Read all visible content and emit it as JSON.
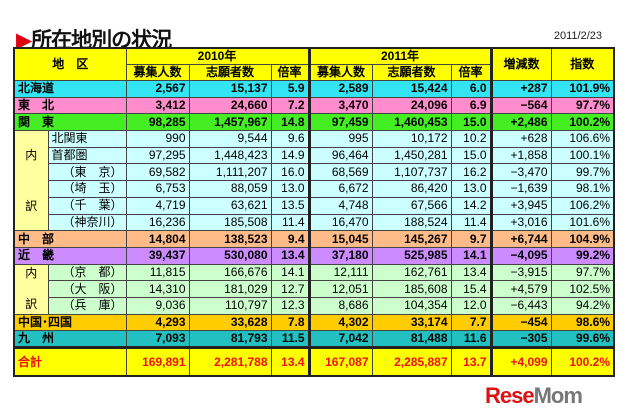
{
  "title": "所在地別の状況",
  "date": "2011/2/23",
  "headers": {
    "region": "地　区",
    "y2010": "2010年",
    "y2011": "2011年",
    "recruit": "募集人数",
    "applicants": "志願者数",
    "ratio": "倍率",
    "change": "増減数",
    "index": "指数"
  },
  "inner_label_top": "内",
  "inner_label_bottom": "訳",
  "rows": [
    {
      "name": "北海道",
      "r10": "2,567",
      "a10": "15,137",
      "x10": "5.9",
      "r11": "2,589",
      "a11": "15,424",
      "x11": "6.0",
      "chg": "+287",
      "idx": "101.9%"
    },
    {
      "name": "東　北",
      "r10": "3,412",
      "a10": "24,660",
      "x10": "7.2",
      "r11": "3,470",
      "a11": "24,096",
      "x11": "6.9",
      "chg": "−564",
      "idx": "97.7%"
    },
    {
      "name": "関　東",
      "r10": "98,285",
      "a10": "1,457,967",
      "x10": "14.8",
      "r11": "97,459",
      "a11": "1,460,453",
      "x11": "15.0",
      "chg": "+2,486",
      "idx": "100.2%"
    },
    {
      "name": "北関東",
      "r10": "990",
      "a10": "9,544",
      "x10": "9.6",
      "r11": "995",
      "a11": "10,172",
      "x11": "10.2",
      "chg": "+628",
      "idx": "106.6%"
    },
    {
      "name": "首都圏",
      "r10": "97,295",
      "a10": "1,448,423",
      "x10": "14.9",
      "r11": "96,464",
      "a11": "1,450,281",
      "x11": "15.0",
      "chg": "+1,858",
      "idx": "100.1%"
    },
    {
      "name": "（東　京）",
      "r10": "69,582",
      "a10": "1,111,207",
      "x10": "16.0",
      "r11": "68,569",
      "a11": "1,107,737",
      "x11": "16.2",
      "chg": "−3,470",
      "idx": "99.7%"
    },
    {
      "name": "（埼　玉）",
      "r10": "6,753",
      "a10": "88,059",
      "x10": "13.0",
      "r11": "6,672",
      "a11": "86,420",
      "x11": "13.0",
      "chg": "−1,639",
      "idx": "98.1%"
    },
    {
      "name": "（千　葉）",
      "r10": "4,719",
      "a10": "63,621",
      "x10": "13.5",
      "r11": "4,748",
      "a11": "67,566",
      "x11": "14.2",
      "chg": "+3,945",
      "idx": "106.2%"
    },
    {
      "name": "（神奈川）",
      "r10": "16,236",
      "a10": "185,508",
      "x10": "11.4",
      "r11": "16,470",
      "a11": "188,524",
      "x11": "11.4",
      "chg": "+3,016",
      "idx": "101.6%"
    },
    {
      "name": "中　部",
      "r10": "14,804",
      "a10": "138,523",
      "x10": "9.4",
      "r11": "15,045",
      "a11": "145,267",
      "x11": "9.7",
      "chg": "+6,744",
      "idx": "104.9%"
    },
    {
      "name": "近　畿",
      "r10": "39,437",
      "a10": "530,080",
      "x10": "13.4",
      "r11": "37,180",
      "a11": "525,985",
      "x11": "14.1",
      "chg": "−4,095",
      "idx": "99.2%"
    },
    {
      "name": "（京　都）",
      "r10": "11,815",
      "a10": "166,676",
      "x10": "14.1",
      "r11": "12,111",
      "a11": "162,761",
      "x11": "13.4",
      "chg": "−3,915",
      "idx": "97.7%"
    },
    {
      "name": "（大　阪）",
      "r10": "14,310",
      "a10": "181,029",
      "x10": "12.7",
      "r11": "12,051",
      "a11": "185,608",
      "x11": "15.4",
      "chg": "+4,579",
      "idx": "102.5%"
    },
    {
      "name": "（兵　庫）",
      "r10": "9,036",
      "a10": "110,797",
      "x10": "12.3",
      "r11": "8,686",
      "a11": "104,354",
      "x11": "12.0",
      "chg": "−6,443",
      "idx": "94.2%"
    },
    {
      "name": "中国･四国",
      "r10": "4,293",
      "a10": "33,628",
      "x10": "7.8",
      "r11": "4,302",
      "a11": "33,174",
      "x11": "7.7",
      "chg": "−454",
      "idx": "98.6%"
    },
    {
      "name": "九　州",
      "r10": "7,093",
      "a10": "81,793",
      "x10": "11.5",
      "r11": "7,042",
      "a11": "81,488",
      "x11": "11.6",
      "chg": "−305",
      "idx": "99.6%"
    },
    {
      "name": "合計",
      "r10": "169,891",
      "a10": "2,281,788",
      "x10": "13.4",
      "r11": "167,087",
      "a11": "2,285,887",
      "x11": "13.7",
      "chg": "+4,099",
      "idx": "100.2%"
    }
  ],
  "logo": "ReseMom",
  "colors": {
    "header": "#ffff00",
    "hokkaido": "#33e4f2",
    "tohoku": "#ff8ccc",
    "kanto": "#44ee22",
    "chubu": "#ffbb88",
    "kinki": "#cc8cff",
    "chugoku_shikoku": "#ffcc00",
    "kyushu": "#22c0c0",
    "total_text": "#ee1111"
  }
}
